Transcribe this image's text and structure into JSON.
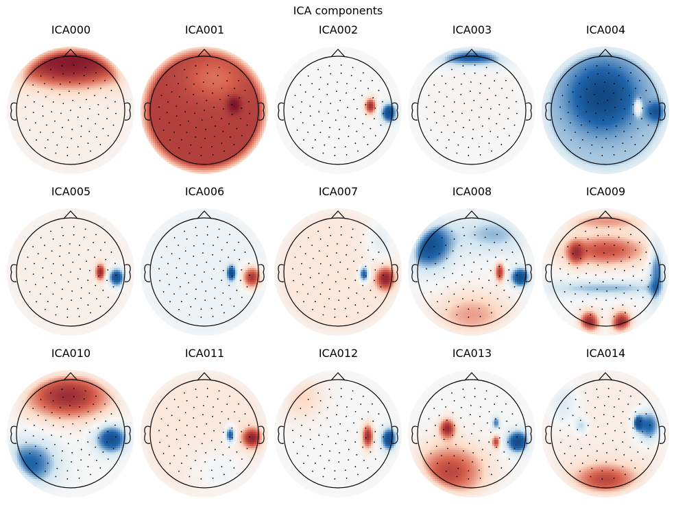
{
  "figure": {
    "title": "ICA components"
  },
  "palette": {
    "negative": "#053061",
    "mid_negative": "#2166ac",
    "light_negative": "#d1e5f0",
    "neutral": "#f7f7f7",
    "light_positive": "#fddbc7",
    "mid_positive": "#d6604d",
    "positive": "#67001f",
    "outline": "#000000"
  },
  "chart_data": {
    "type": "heatmap",
    "title": "ICA components",
    "layout": {
      "rows": 3,
      "cols": 5
    },
    "value_range": [
      -1,
      1
    ],
    "components": [
      {
        "name": "ICA000",
        "base": 0.08,
        "blobs": [
          {
            "x": 0.0,
            "y": 0.95,
            "sx": 0.9,
            "sy": 0.25,
            "a": 1.1
          },
          {
            "x": 0.0,
            "y": 0.6,
            "sx": 0.6,
            "sy": 0.2,
            "a": 0.35
          }
        ]
      },
      {
        "name": "ICA001",
        "base": 0.85,
        "blobs": [
          {
            "x": 0.55,
            "y": 0.1,
            "sx": 0.08,
            "sy": 0.1,
            "a": 0.6
          },
          {
            "x": 0.2,
            "y": 0.6,
            "sx": 0.4,
            "sy": 0.3,
            "a": -0.25
          }
        ]
      },
      {
        "name": "ICA002",
        "base": 0.0,
        "blobs": [
          {
            "x": 0.6,
            "y": 0.08,
            "sx": 0.07,
            "sy": 0.1,
            "a": 1.0
          },
          {
            "x": 0.95,
            "y": -0.05,
            "sx": 0.1,
            "sy": 0.12,
            "a": -1.0
          }
        ]
      },
      {
        "name": "ICA003",
        "base": 0.0,
        "blobs": [
          {
            "x": 0.0,
            "y": 1.0,
            "sx": 0.5,
            "sy": 0.12,
            "a": -0.8
          },
          {
            "x": 0.0,
            "y": 0.2,
            "sx": 0.5,
            "sy": 0.4,
            "a": 0.05
          }
        ]
      },
      {
        "name": "ICA004",
        "base": -0.35,
        "blobs": [
          {
            "x": -0.05,
            "y": 0.25,
            "sx": 0.4,
            "sy": 0.4,
            "a": -0.7
          },
          {
            "x": 0.6,
            "y": 0.05,
            "sx": 0.05,
            "sy": 0.1,
            "a": 0.6
          },
          {
            "x": 0.95,
            "y": -0.03,
            "sx": 0.12,
            "sy": 0.12,
            "a": -0.5
          }
        ]
      },
      {
        "name": "ICA005",
        "base": 0.08,
        "blobs": [
          {
            "x": 0.55,
            "y": 0.0,
            "sx": 0.06,
            "sy": 0.1,
            "a": 1.0
          },
          {
            "x": 0.85,
            "y": -0.1,
            "sx": 0.1,
            "sy": 0.12,
            "a": -1.0
          }
        ]
      },
      {
        "name": "ICA006",
        "base": -0.08,
        "blobs": [
          {
            "x": 0.5,
            "y": -0.02,
            "sx": 0.06,
            "sy": 0.1,
            "a": -0.9
          },
          {
            "x": 0.88,
            "y": -0.1,
            "sx": 0.12,
            "sy": 0.14,
            "a": 1.0
          }
        ]
      },
      {
        "name": "ICA007",
        "base": 0.15,
        "blobs": [
          {
            "x": 0.48,
            "y": -0.04,
            "sx": 0.06,
            "sy": 0.1,
            "a": -0.9
          },
          {
            "x": 0.88,
            "y": -0.12,
            "sx": 0.12,
            "sy": 0.14,
            "a": 1.0
          },
          {
            "x": 0.8,
            "y": 0.6,
            "sx": 0.2,
            "sy": 0.3,
            "a": -0.3
          }
        ]
      },
      {
        "name": "ICA008",
        "base": 0.0,
        "blobs": [
          {
            "x": -0.8,
            "y": 0.5,
            "sx": 0.3,
            "sy": 0.3,
            "a": -0.9
          },
          {
            "x": 0.4,
            "y": 0.7,
            "sx": 0.5,
            "sy": 0.25,
            "a": -0.4
          },
          {
            "x": 0.0,
            "y": -0.8,
            "sx": 0.5,
            "sy": 0.3,
            "a": 0.45
          },
          {
            "x": 0.52,
            "y": 0.0,
            "sx": 0.06,
            "sy": 0.12,
            "a": 0.9
          },
          {
            "x": 0.9,
            "y": -0.1,
            "sx": 0.12,
            "sy": 0.12,
            "a": -1.0
          }
        ]
      },
      {
        "name": "ICA009",
        "base": 0.0,
        "blobs": [
          {
            "x": 0.0,
            "y": 0.4,
            "sx": 0.55,
            "sy": 0.2,
            "a": 0.75
          },
          {
            "x": -0.55,
            "y": 0.35,
            "sx": 0.1,
            "sy": 0.15,
            "a": 0.6
          },
          {
            "x": 0.0,
            "y": 0.95,
            "sx": 0.7,
            "sy": 0.12,
            "a": 0.45
          },
          {
            "x": -0.3,
            "y": -0.95,
            "sx": 0.12,
            "sy": 0.15,
            "a": 1.1
          },
          {
            "x": 0.3,
            "y": -0.95,
            "sx": 0.12,
            "sy": 0.15,
            "a": 1.1
          },
          {
            "x": 0.0,
            "y": -0.3,
            "sx": 0.9,
            "sy": 0.1,
            "a": -0.4
          },
          {
            "x": 0.95,
            "y": 0.0,
            "sx": 0.1,
            "sy": 0.5,
            "a": -0.6
          }
        ]
      },
      {
        "name": "ICA010",
        "base": 0.0,
        "blobs": [
          {
            "x": -0.05,
            "y": 0.7,
            "sx": 0.55,
            "sy": 0.3,
            "a": 1.0
          },
          {
            "x": 0.75,
            "y": -0.1,
            "sx": 0.2,
            "sy": 0.18,
            "a": -0.9
          },
          {
            "x": -0.75,
            "y": -0.55,
            "sx": 0.35,
            "sy": 0.3,
            "a": -0.7
          }
        ]
      },
      {
        "name": "ICA011",
        "base": 0.15,
        "blobs": [
          {
            "x": 0.48,
            "y": -0.02,
            "sx": 0.06,
            "sy": 0.1,
            "a": -0.9
          },
          {
            "x": 0.88,
            "y": -0.08,
            "sx": 0.12,
            "sy": 0.12,
            "a": 1.0
          },
          {
            "x": 0.3,
            "y": -0.7,
            "sx": 0.4,
            "sy": 0.3,
            "a": -0.2
          }
        ]
      },
      {
        "name": "ICA012",
        "base": 0.0,
        "blobs": [
          {
            "x": 0.55,
            "y": -0.05,
            "sx": 0.07,
            "sy": 0.15,
            "a": 1.0
          },
          {
            "x": 0.95,
            "y": -0.1,
            "sx": 0.1,
            "sy": 0.14,
            "a": -1.0
          },
          {
            "x": -0.7,
            "y": 0.7,
            "sx": 0.3,
            "sy": 0.3,
            "a": 0.3
          }
        ]
      },
      {
        "name": "ICA013",
        "base": 0.0,
        "blobs": [
          {
            "x": -0.45,
            "y": 0.1,
            "sx": 0.1,
            "sy": 0.12,
            "a": 1.0
          },
          {
            "x": -0.4,
            "y": -0.7,
            "sx": 0.45,
            "sy": 0.35,
            "a": 0.8
          },
          {
            "x": 0.85,
            "y": -0.15,
            "sx": 0.14,
            "sy": 0.14,
            "a": -1.0
          },
          {
            "x": 0.45,
            "y": -0.15,
            "sx": 0.05,
            "sy": 0.08,
            "a": 0.8
          },
          {
            "x": 0.45,
            "y": 0.2,
            "sx": 0.05,
            "sy": 0.08,
            "a": -0.6
          }
        ]
      },
      {
        "name": "ICA014",
        "base": 0.1,
        "blobs": [
          {
            "x": 0.8,
            "y": 0.15,
            "sx": 0.15,
            "sy": 0.2,
            "a": -0.8
          },
          {
            "x": 0.6,
            "y": 0.2,
            "sx": 0.06,
            "sy": 0.1,
            "a": -0.8
          },
          {
            "x": -0.45,
            "y": 0.15,
            "sx": 0.08,
            "sy": 0.1,
            "a": -0.4
          },
          {
            "x": 0.0,
            "y": -0.85,
            "sx": 0.4,
            "sy": 0.2,
            "a": 0.7
          },
          {
            "x": -0.8,
            "y": 0.6,
            "sx": 0.2,
            "sy": 0.3,
            "a": -0.3
          }
        ]
      }
    ]
  }
}
